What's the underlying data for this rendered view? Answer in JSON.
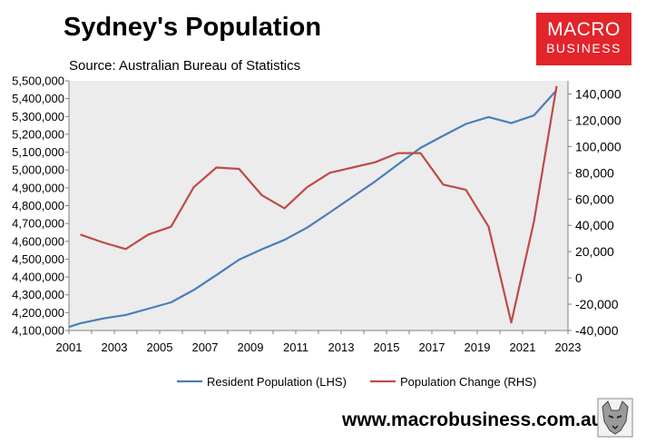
{
  "header": {
    "title": "Sydney's Population",
    "subtitle": "Source: Australian Bureau of Statistics"
  },
  "brand": {
    "logo_line1": "MACRO",
    "logo_line2": "BUSINESS",
    "logo_color": "#e2242b",
    "website": "www.macrobusiness.com.au"
  },
  "chart_data": {
    "type": "line",
    "title": "Sydney's Population",
    "subtitle": "Source: Australian Bureau of Statistics",
    "x_ticks": [
      "2001",
      "2003",
      "2005",
      "2007",
      "2009",
      "2011",
      "2013",
      "2015",
      "2017",
      "2019",
      "2021",
      "2023"
    ],
    "xlim": [
      2001,
      2023
    ],
    "y_left": {
      "ylim": [
        4100000,
        5500000
      ],
      "ticks": [
        "4,100,000",
        "4,200,000",
        "4,300,000",
        "4,400,000",
        "4,500,000",
        "4,600,000",
        "4,700,000",
        "4,800,000",
        "4,900,000",
        "5,000,000",
        "5,100,000",
        "5,200,000",
        "5,300,000",
        "5,400,000",
        "5,500,000"
      ]
    },
    "y_right": {
      "ylim": [
        -40000,
        150000
      ],
      "ticks": [
        "-40,000",
        "-20,000",
        "0",
        "20,000",
        "40,000",
        "60,000",
        "80,000",
        "100,000",
        "120,000",
        "140,000"
      ]
    },
    "grid": false,
    "legend_position": "bottom",
    "series": [
      {
        "name": "Resident Population (LHS)",
        "axis": "left",
        "color": "#4a7ebb",
        "points": [
          [
            2001,
            4120000
          ],
          [
            2001.5,
            4140000
          ],
          [
            2002.5,
            4167000
          ],
          [
            2003.5,
            4187000
          ],
          [
            2004.5,
            4222000
          ],
          [
            2005.5,
            4258000
          ],
          [
            2006.5,
            4327000
          ],
          [
            2007.5,
            4411000
          ],
          [
            2008.5,
            4497000
          ],
          [
            2009.5,
            4555000
          ],
          [
            2010.5,
            4608000
          ],
          [
            2011.5,
            4677000
          ],
          [
            2012.5,
            4762000
          ],
          [
            2013.5,
            4849000
          ],
          [
            2014.5,
            4936000
          ],
          [
            2015.5,
            5031000
          ],
          [
            2016.5,
            5124000
          ],
          [
            2017.5,
            5192000
          ],
          [
            2018.5,
            5258000
          ],
          [
            2019.5,
            5297000
          ],
          [
            2020.5,
            5263000
          ],
          [
            2021.5,
            5306000
          ],
          [
            2022.5,
            5448000
          ]
        ]
      },
      {
        "name": "Population Change (RHS)",
        "axis": "right",
        "color": "#be4b48",
        "points": [
          [
            2001.5,
            33000
          ],
          [
            2002.5,
            27000
          ],
          [
            2003.5,
            22000
          ],
          [
            2004.5,
            33000
          ],
          [
            2005.5,
            39000
          ],
          [
            2006.5,
            69000
          ],
          [
            2007.5,
            84000
          ],
          [
            2008.5,
            83000
          ],
          [
            2009.5,
            63000
          ],
          [
            2010.5,
            53000
          ],
          [
            2011.5,
            69000
          ],
          [
            2012.5,
            80000
          ],
          [
            2013.5,
            84000
          ],
          [
            2014.5,
            88000
          ],
          [
            2015.5,
            95000
          ],
          [
            2016.5,
            95000
          ],
          [
            2017.5,
            71000
          ],
          [
            2018.5,
            67000
          ],
          [
            2019.5,
            39000
          ],
          [
            2020.5,
            -34000
          ],
          [
            2021.5,
            43000
          ],
          [
            2022.5,
            146000
          ]
        ]
      }
    ]
  }
}
